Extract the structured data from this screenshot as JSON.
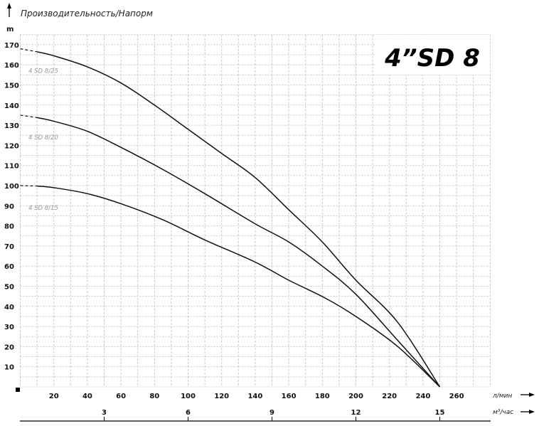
{
  "chart_data": {
    "type": "line",
    "title": "4”SD  8",
    "header": "Производительность/Напорм",
    "ylabel": "m",
    "xlabel": "л/мин",
    "x2label": "м³/час",
    "xlim": [
      0,
      280
    ],
    "ylim": [
      0,
      175
    ],
    "grid": true,
    "x_ticks": [
      20,
      40,
      60,
      80,
      100,
      120,
      140,
      160,
      180,
      200,
      220,
      240,
      260
    ],
    "y_ticks": [
      10,
      20,
      30,
      40,
      50,
      60,
      70,
      80,
      90,
      100,
      110,
      120,
      130,
      140,
      150,
      160,
      170
    ],
    "x2_ticks": [
      3,
      6,
      9,
      12,
      15
    ],
    "series": [
      {
        "name": "4 SD 8/25",
        "x": [
          0,
          10,
          20,
          40,
          60,
          80,
          100,
          120,
          140,
          160,
          180,
          200,
          225,
          250
        ],
        "y": [
          168,
          166.5,
          164.5,
          159,
          151,
          140,
          128,
          116,
          104,
          88,
          72,
          53,
          32,
          0
        ]
      },
      {
        "name": "4 SD 8/20",
        "x": [
          0,
          10,
          20,
          40,
          60,
          85,
          110,
          140,
          160,
          180,
          200,
          225,
          250
        ],
        "y": [
          135,
          133.8,
          132,
          127,
          119,
          108,
          96,
          81,
          72,
          60,
          46,
          23,
          0
        ]
      },
      {
        "name": "4 SD 8/15",
        "x": [
          0,
          10,
          20,
          40,
          60,
          85,
          110,
          140,
          160,
          182,
          200,
          225,
          250
        ],
        "y": [
          100,
          99.8,
          99,
          96,
          91,
          83,
          73,
          62,
          53,
          44,
          35,
          20,
          0
        ]
      }
    ],
    "dashed_until_x": 10
  }
}
